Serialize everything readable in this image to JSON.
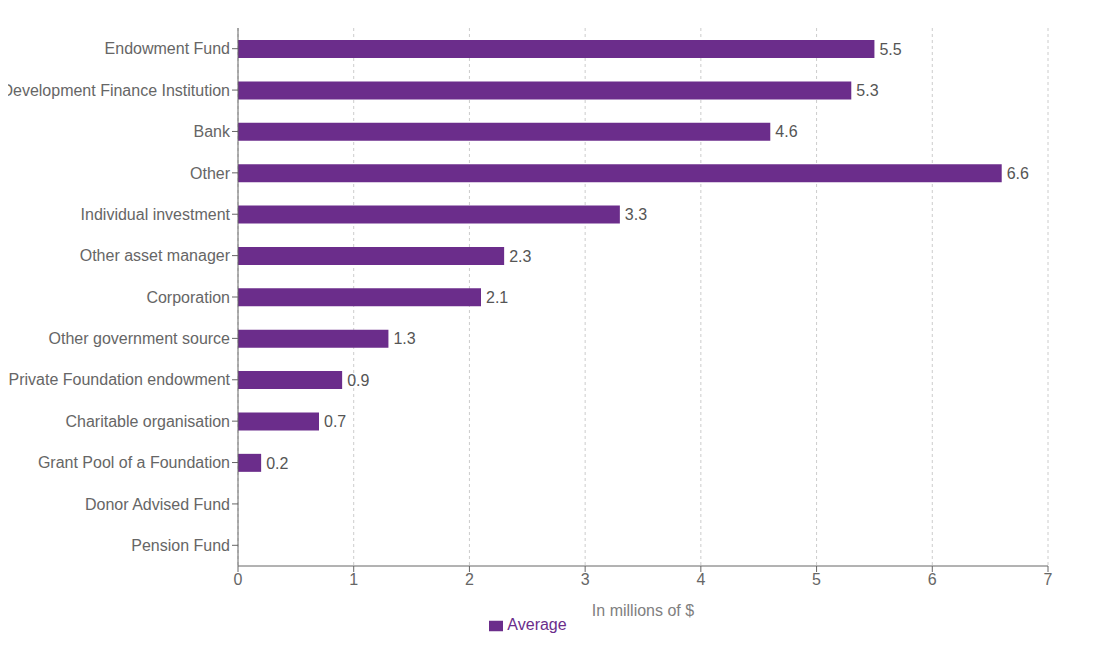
{
  "chart_data": {
    "type": "bar",
    "orientation": "horizontal",
    "categories": [
      "Pension Fund",
      "Donor Advised Fund",
      "Grant Pool of a Foundation",
      "Charitable organisation",
      "Private Foundation endowment",
      "Other government source",
      "Corporation",
      "Other asset manager",
      "Individual investment",
      "Other",
      "Bank",
      "Development Finance Institution",
      "Endowment Fund"
    ],
    "series": [
      {
        "name": "Average",
        "color": "#6b2d8b",
        "values": [
          0,
          0,
          0.2,
          0.7,
          0.9,
          1.3,
          2.1,
          2.3,
          3.3,
          6.6,
          4.6,
          5.3,
          5.5
        ]
      }
    ],
    "xlabel": "In millions of $",
    "xlim": [
      0,
      7
    ],
    "xticks": [
      0,
      1,
      2,
      3,
      4,
      5,
      6,
      7
    ],
    "grid": true,
    "legend": "bottom",
    "data_labels": true
  }
}
